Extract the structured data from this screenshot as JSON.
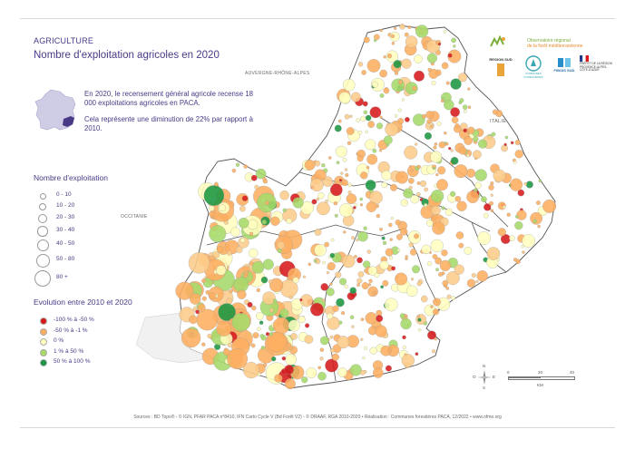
{
  "header": {
    "category": "AGRICULTURE",
    "title": "Nombre d'exploitation agricoles en 2020"
  },
  "intro": {
    "paragraph1": "En 2020, le recensement général agricole recense 18 000 exploitations agricoles en PACA.",
    "paragraph2": "Cela représente une diminution de 22% par rapport à 2010."
  },
  "map_labels": {
    "north": "AUVERGNE-RHÔNE-ALPES",
    "east": "ITALIE",
    "west": "OCCITANIE"
  },
  "legend_size": {
    "title": "Nombre d'exploitation",
    "items": [
      "0 - 10",
      "10 - 20",
      "20 - 30",
      "30 - 40",
      "40 - 50",
      "50 - 80",
      "80 +"
    ]
  },
  "legend_evolution": {
    "title": "Evolution entre 2010 et 2020",
    "items": [
      {
        "label": "-100 % à  -50 %",
        "color": "#d7191c"
      },
      {
        "label": "-50 % à -1 %",
        "color": "#fdae61"
      },
      {
        "label": "0 %",
        "color": "#ffffbf"
      },
      {
        "label": "1 % à 50 %",
        "color": "#a6d96a"
      },
      {
        "label": "50 % à 100 %",
        "color": "#1a9641"
      }
    ]
  },
  "logos": {
    "observatoire_line1": "Observatoire régional",
    "observatoire_line2": "de la forêt méditerranéenne",
    "region": "REGION SUD",
    "communes": "COMMUNES FORESTIÈRES",
    "fibois": "FIBOIS SUD",
    "prefet": "PRÉFET DE LA RÉGION PROVENCE-ALPES-CÔTE-D'AZUR"
  },
  "scale": {
    "ticks": [
      "0",
      "20",
      "40"
    ],
    "unit": "KM"
  },
  "compass": {
    "n": "N",
    "s": "S",
    "e": "E",
    "o": "O"
  },
  "sources": "Sources : BD Topo® - © IGN, PFAR PACA n°8410, IFN Carto Cycle V (Bd Forêt V2) - © DRAAF, RGA 2010-2020 • Réalisation : Communes forestières PACA, 12/2022 • www.ofme.org"
}
